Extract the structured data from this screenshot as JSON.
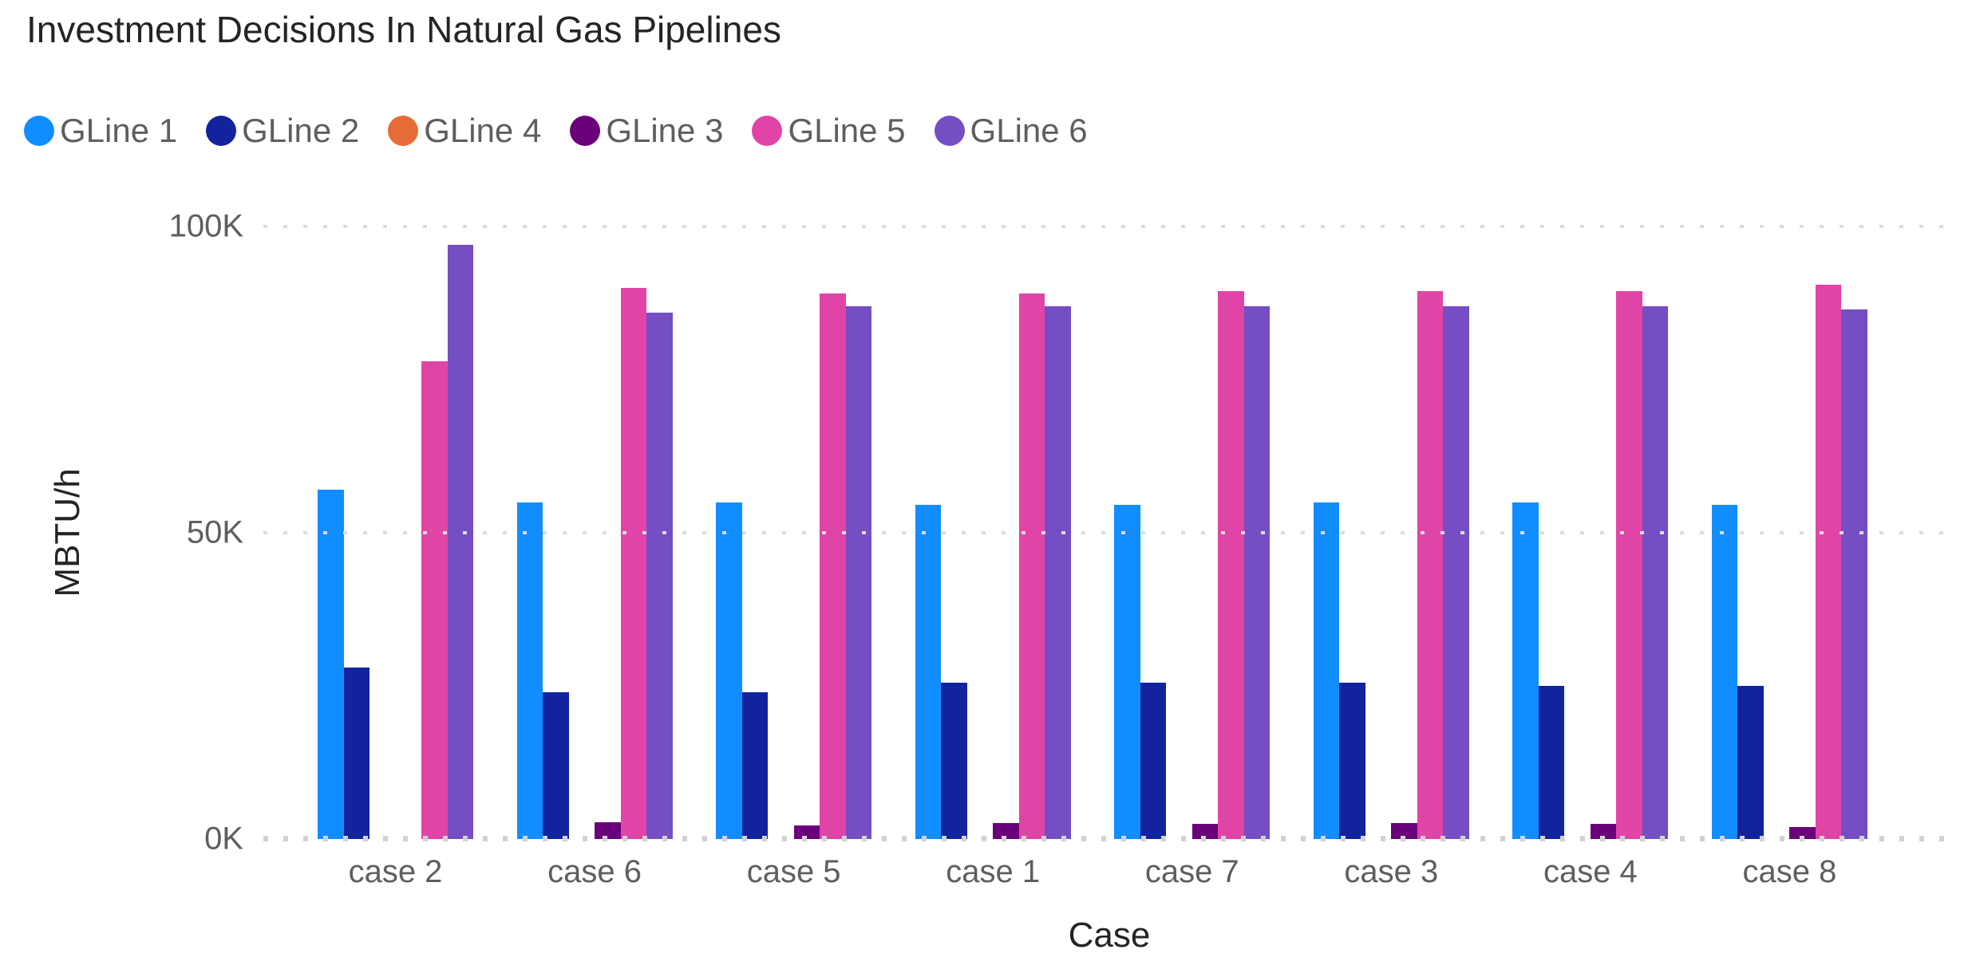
{
  "title": "Investment Decisions In Natural Gas Pipelines",
  "chart_data": {
    "type": "bar",
    "title": "Investment Decisions In Natural Gas Pipelines",
    "xlabel": "Case",
    "ylabel": "MBTU/h",
    "categories": [
      "case 2",
      "case 6",
      "case 5",
      "case 1",
      "case 7",
      "case 3",
      "case 4",
      "case 8"
    ],
    "series": [
      {
        "name": "GLine 1",
        "color": "#118DFF",
        "values": [
          57000,
          55000,
          55000,
          54500,
          54500,
          55000,
          55000,
          54500
        ]
      },
      {
        "name": "GLine 2",
        "color": "#12239E",
        "values": [
          28000,
          24000,
          24000,
          25500,
          25500,
          25500,
          25000,
          25000
        ]
      },
      {
        "name": "GLine 4",
        "color": "#E66C37",
        "values": [
          0,
          0,
          0,
          0,
          0,
          0,
          0,
          0
        ]
      },
      {
        "name": "GLine 3",
        "color": "#6B007B",
        "values": [
          0,
          2800,
          2200,
          2600,
          2500,
          2600,
          2500,
          2000
        ]
      },
      {
        "name": "GLine 5",
        "color": "#E044A7",
        "values": [
          78000,
          90000,
          89000,
          89000,
          89500,
          89500,
          89500,
          90500
        ]
      },
      {
        "name": "GLine 6",
        "color": "#744EC2",
        "values": [
          97000,
          86000,
          87000,
          87000,
          87000,
          87000,
          87000,
          86500
        ]
      }
    ],
    "ylim": [
      0,
      100000
    ],
    "yticks": [
      "0K",
      "50K",
      "100K"
    ],
    "grid": "dotted-horizontal",
    "legend_position": "top-left",
    "axis_text_color": "#605E5C",
    "title_text_color": "#252423",
    "background_color": "#FFFFFF"
  }
}
